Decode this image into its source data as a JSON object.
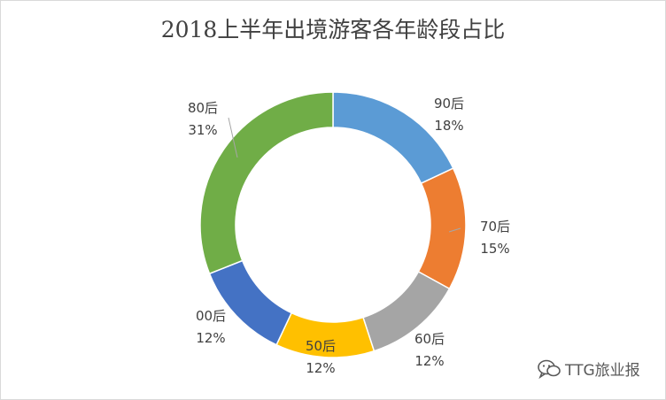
{
  "chart_data": {
    "type": "pie",
    "title": "2018上半年出境游客各年龄段占比",
    "slices": [
      {
        "label": "90后",
        "value": 18,
        "pct_text": "18%",
        "color": "#5b9bd5"
      },
      {
        "label": "70后",
        "value": 15,
        "pct_text": "15%",
        "color": "#ed7d31"
      },
      {
        "label": "60后",
        "value": 12,
        "pct_text": "12%",
        "color": "#a5a5a5"
      },
      {
        "label": "50后",
        "value": 12,
        "pct_text": "12%",
        "color": "#ffc000"
      },
      {
        "label": "00后",
        "value": 12,
        "pct_text": "12%",
        "color": "#4472c4"
      },
      {
        "label": "80后",
        "value": 31,
        "pct_text": "31%",
        "color": "#70ad47"
      }
    ],
    "legend": "none"
  },
  "watermark": {
    "text": "TTG旅业报",
    "icon": "wechat-icon"
  }
}
